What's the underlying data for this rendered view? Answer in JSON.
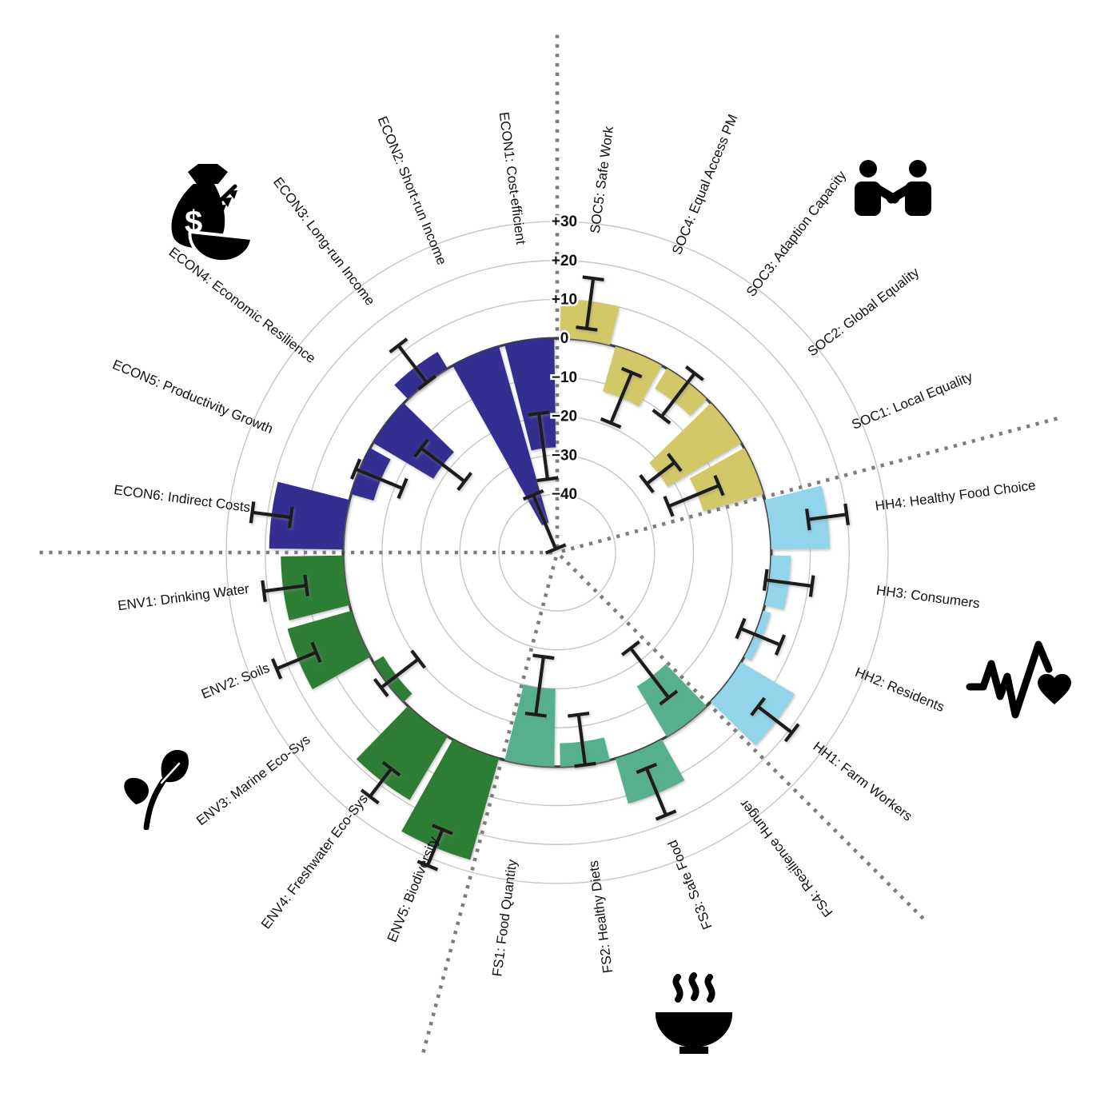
{
  "figure": {
    "title": "",
    "description": "Radial indicator bar chart with five themed sectors and error bars"
  },
  "chart_data": {
    "type": "bar",
    "subtype": "polar-radial-bars",
    "radial_axis": {
      "range": [
        -55,
        30
      ],
      "zero_ring": true,
      "grid": true,
      "tick_values": [
        30,
        20,
        10,
        0,
        -10,
        -20,
        -30,
        -40
      ],
      "tick_labels": [
        "+30",
        "+20",
        "+10",
        "0",
        "−10",
        "−20",
        "−30",
        "−40"
      ]
    },
    "sector_boundaries_deg": [
      0,
      75,
      135,
      195,
      270
    ],
    "groups": [
      {
        "name": "SOC",
        "color": "#d3c867",
        "icon": "handshake-icon"
      },
      {
        "name": "HH",
        "color": "#92d4ea",
        "icon": "heart-pulse-icon"
      },
      {
        "name": "FS",
        "color": "#57b08d",
        "icon": "steaming-bowl-icon"
      },
      {
        "name": "ENV",
        "color": "#2e7d36",
        "icon": "plant-icon"
      },
      {
        "name": "ECON",
        "color": "#352e91",
        "icon": "money-bag-icon"
      }
    ],
    "bars": [
      {
        "id": "SOC5",
        "label": "SOC5: Safe Work",
        "group": "SOC",
        "theta": 7.5,
        "value": 10,
        "err_lo": 3,
        "err_hi": 16
      },
      {
        "id": "SOC4",
        "label": "SOC4: Equal Access PM",
        "group": "SOC",
        "theta": 22.5,
        "value": -12,
        "err_lo": -19,
        "err_hi": -5
      },
      {
        "id": "SOC3",
        "label": "SOC3: Adaption Capacity",
        "group": "SOC",
        "theta": 37.5,
        "value": -6,
        "err_lo": -11,
        "err_hi": 3
      },
      {
        "id": "SOC2",
        "label": "SOC2: Global Equality",
        "group": "SOC",
        "theta": 52.5,
        "value": -22,
        "err_lo": -26,
        "err_hi": -17
      },
      {
        "id": "SOC1",
        "label": "SOC1: Local Equality",
        "group": "SOC",
        "theta": 67.5,
        "value": -16,
        "err_lo": -24,
        "err_hi": -10
      },
      {
        "id": "HH4",
        "label": "HH4: Healthy Food Choice",
        "group": "HH",
        "theta": 82.5,
        "value": 15,
        "err_lo": 10,
        "err_hi": 20
      },
      {
        "id": "HH3",
        "label": "HH3: Consumers",
        "group": "HH",
        "theta": 97.5,
        "value": 5,
        "err_lo": -1,
        "err_hi": 11
      },
      {
        "id": "HH2",
        "label": "HH2: Residents",
        "group": "HH",
        "theta": 112.5,
        "value": 2,
        "err_lo": -4,
        "err_hi": 7
      },
      {
        "id": "HH1",
        "label": "HH1: Farm Workers",
        "group": "HH",
        "theta": 127.5,
        "value": 16,
        "err_lo": 10,
        "err_hi": 21
      },
      {
        "id": "FS4",
        "label": "FS4: Resilience Hunger",
        "group": "FS",
        "theta": 142.5,
        "value": -15,
        "err_lo": -24,
        "err_hi": -8
      },
      {
        "id": "FS3",
        "label": "FS3: Safe Food",
        "group": "FS",
        "theta": 157.5,
        "value": 12,
        "err_lo": 5,
        "err_hi": 18
      },
      {
        "id": "FS2",
        "label": "FS2: Healthy Diets",
        "group": "FS",
        "theta": 172.5,
        "value": -6,
        "err_lo": -13,
        "err_hi": 0
      },
      {
        "id": "FS1",
        "label": "FS1: Food Quantity",
        "group": "FS",
        "theta": 187.5,
        "value": -20,
        "err_lo": -28,
        "err_hi": -13
      },
      {
        "id": "ENV5",
        "label": "ENV5: Biodiversity",
        "group": "ENV",
        "theta": 202.5,
        "value": 27,
        "err_lo": 22,
        "err_hi": 32
      },
      {
        "id": "ENV4",
        "label": "ENV4: Freshwater Eco-Sys",
        "group": "ENV",
        "theta": 217.5,
        "value": 19,
        "err_lo": 15,
        "err_hi": 24
      },
      {
        "id": "ENV3",
        "label": "ENV3: Marine Eco-Sys",
        "group": "ENV",
        "theta": 232.5,
        "value": -3,
        "err_lo": -10,
        "err_hi": 2
      },
      {
        "id": "ENV2",
        "label": "ENV2: Soils",
        "group": "ENV",
        "theta": 247.5,
        "value": 17,
        "err_lo": 12,
        "err_hi": 23
      },
      {
        "id": "ENV1",
        "label": "ENV1: Drinking Water",
        "group": "ENV",
        "theta": 262.5,
        "value": 16,
        "err_lo": 10,
        "err_hi": 21
      },
      {
        "id": "ECON6",
        "label": "ECON6: Indirect Costs",
        "group": "ECON",
        "theta": 277.5,
        "value": 19,
        "err_lo": 14,
        "err_hi": 24
      },
      {
        "id": "ECON5",
        "label": "ECON5: Productivity Growth",
        "group": "ECON",
        "theta": 292.5,
        "value": -6,
        "err_lo": -12,
        "err_hi": 1
      },
      {
        "id": "ECON4",
        "label": "ECON4: Economic Resilience",
        "group": "ECON",
        "theta": 307.5,
        "value": -18,
        "err_lo": -25,
        "err_hi": -11
      },
      {
        "id": "ECON3",
        "label": "ECON3: Long-run Income",
        "group": "ECON",
        "theta": 322.5,
        "value": 5,
        "err_lo": 0,
        "err_hi": 12
      },
      {
        "id": "ECON2",
        "label": "ECON2: Short-run Income",
        "group": "ECON",
        "theta": 337.5,
        "value": -47,
        "err_lo": -54,
        "err_hi": -39
      },
      {
        "id": "ECON1",
        "label": "ECON1: Cost-efficient",
        "group": "ECON",
        "theta": 352.5,
        "value": -28,
        "err_lo": -36,
        "err_hi": -19
      }
    ],
    "style": {
      "grid_color": "#c6c6c6",
      "zero_ring_color": "#3c3c3c",
      "error_bar_color": "#1c1c1c",
      "divider_color": "#7c7c7c",
      "label_color": "#111111"
    }
  }
}
